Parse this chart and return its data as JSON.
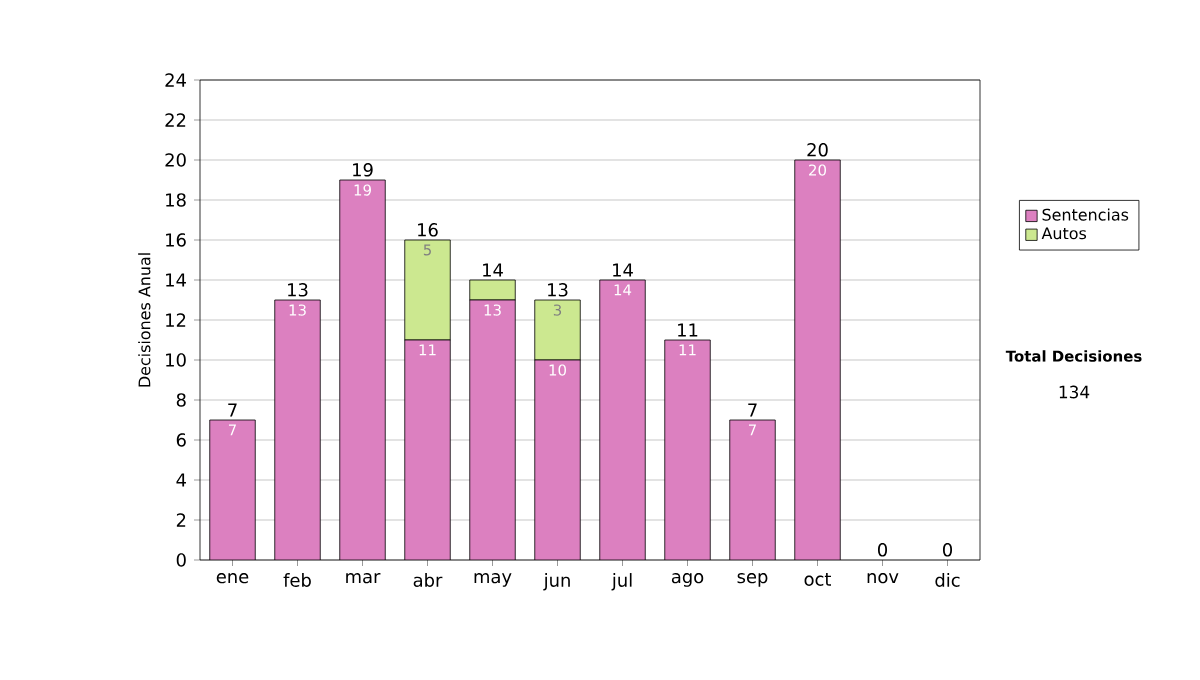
{
  "chart_data": {
    "type": "bar",
    "stacked": true,
    "ylabel": "Decisiones Anual",
    "categories": [
      "ene",
      "feb",
      "mar",
      "abr",
      "may",
      "jun",
      "jul",
      "ago",
      "sep",
      "oct",
      "nov",
      "dic"
    ],
    "series": [
      {
        "name": "Sentencias",
        "color": "#dc80c0",
        "values": [
          7,
          13,
          19,
          11,
          13,
          10,
          14,
          11,
          7,
          20,
          0,
          0
        ],
        "value_labels": [
          "7",
          "13",
          "19",
          "11",
          "13",
          "10",
          "14",
          "11",
          "7",
          "20",
          null,
          null
        ]
      },
      {
        "name": "Autos",
        "color": "#cce890",
        "values": [
          0,
          0,
          0,
          5,
          1,
          3,
          0,
          0,
          0,
          0,
          0,
          0
        ],
        "value_labels": [
          null,
          null,
          null,
          "5",
          null,
          "3",
          null,
          null,
          null,
          null,
          null,
          null
        ]
      }
    ],
    "totals": [
      "7",
      "13",
      "19",
      "16",
      "14",
      "13",
      "14",
      "11",
      "7",
      "20",
      "0",
      "0"
    ],
    "ylim": [
      0,
      24
    ],
    "yticks": [
      0,
      2,
      4,
      6,
      8,
      10,
      12,
      14,
      16,
      18,
      20,
      22,
      24
    ],
    "grid": "y",
    "legend": "right",
    "annotations": [
      "Total Decisiones",
      "134"
    ]
  }
}
